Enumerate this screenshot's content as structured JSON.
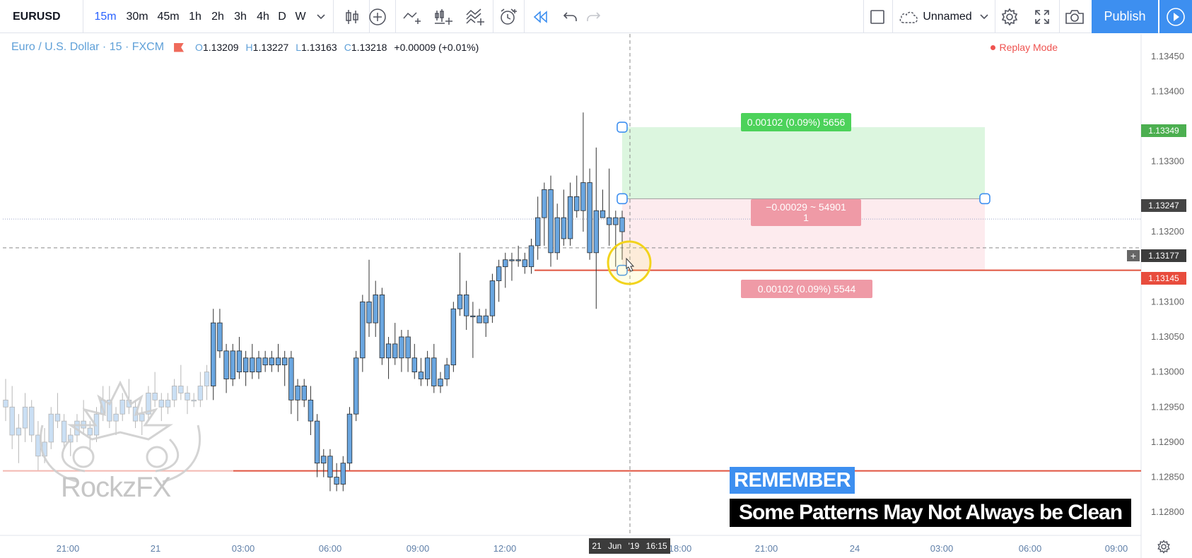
{
  "toolbar": {
    "symbol": "EURUSD",
    "intervals": [
      "15m",
      "30m",
      "45m",
      "1h",
      "2h",
      "3h",
      "4h",
      "D",
      "W"
    ],
    "active_interval": "15m",
    "layout_name": "Unnamed",
    "publish_label": "Publish"
  },
  "legend": {
    "title": "Euro / U.S. Dollar · 15 · FXCM",
    "o_key": "O",
    "o_val": "1.13209",
    "h_key": "H",
    "h_val": "1.13227",
    "l_key": "L",
    "l_val": "1.13163",
    "c_key": "C",
    "c_val": "1.13218",
    "change": "+0.00009 (+0.01%)",
    "replay": "Replay Mode"
  },
  "position": {
    "tp_label": "0.00102 (0.09%) 5656",
    "mid_label_1": "−0.00029 ~ 54901",
    "mid_label_2": "1",
    "sl_label": "0.00102 (0.09%) 5544",
    "tp_price": "1.13349",
    "entry_price": "1.13247",
    "crosshair_price": "1.13177",
    "sl_price": "1.13145",
    "tp_value": 1.13349,
    "entry_value": 1.13247,
    "sl_value": 1.13145
  },
  "crosshair": {
    "time_label": "21 Jun '19 16:15"
  },
  "overlay": {
    "remember": "REMEMBER",
    "subtitle": "Some Patterns May Not Always be Clean",
    "watermark": "RockzFX"
  },
  "colors": {
    "up": "#6aa6e0",
    "down": "#6aa6e0",
    "wick": "#333333",
    "accent": "#3d8ff0",
    "tp_fill": "#dcf6df",
    "sl_fill": "#fdebee",
    "support_line": "#e0533f"
  },
  "chart_data": {
    "type": "candlestick",
    "ylim": [
      1.1277,
      1.1348
    ],
    "y_ticks": [
      "1.13450",
      "1.13400",
      "1.13300",
      "1.13200",
      "1.13100",
      "1.13050",
      "1.13000",
      "1.12950",
      "1.12900",
      "1.12850",
      "1.12800"
    ],
    "y_tick_values": [
      1.1345,
      1.134,
      1.133,
      1.132,
      1.131,
      1.1305,
      1.13,
      1.1295,
      1.129,
      1.1285,
      1.128
    ],
    "x_ticks": [
      "21:00",
      "21",
      "03:00",
      "06:00",
      "09:00",
      "12:00",
      "18:00",
      "21:00",
      "24",
      "03:00",
      "06:00",
      "09:00"
    ],
    "horizontal_lines": [
      1.13145,
      1.12859
    ],
    "candles": [
      [
        1.1296,
        1.1299,
        1.1293,
        1.1295
      ],
      [
        1.1295,
        1.1298,
        1.1289,
        1.1291
      ],
      [
        1.1291,
        1.1294,
        1.1287,
        1.1292
      ],
      [
        1.1292,
        1.1297,
        1.129,
        1.1295
      ],
      [
        1.1295,
        1.1296,
        1.129,
        1.1291
      ],
      [
        1.1291,
        1.1293,
        1.1286,
        1.1288
      ],
      [
        1.1288,
        1.1292,
        1.1287,
        1.129
      ],
      [
        1.129,
        1.1295,
        1.1289,
        1.1294
      ],
      [
        1.1294,
        1.1297,
        1.1292,
        1.1293
      ],
      [
        1.1293,
        1.1294,
        1.1289,
        1.129
      ],
      [
        1.129,
        1.1292,
        1.1288,
        1.1291
      ],
      [
        1.1291,
        1.1294,
        1.129,
        1.1293
      ],
      [
        1.1293,
        1.1296,
        1.1291,
        1.1292
      ],
      [
        1.1292,
        1.1293,
        1.1289,
        1.1291
      ],
      [
        1.1291,
        1.1295,
        1.129,
        1.1294
      ],
      [
        1.1294,
        1.1298,
        1.1293,
        1.1296
      ],
      [
        1.1296,
        1.1298,
        1.1292,
        1.1293
      ],
      [
        1.1293,
        1.1295,
        1.1291,
        1.1294
      ],
      [
        1.1294,
        1.1297,
        1.1293,
        1.1296
      ],
      [
        1.1296,
        1.1299,
        1.1294,
        1.1295
      ],
      [
        1.1295,
        1.1296,
        1.1292,
        1.1293
      ],
      [
        1.1293,
        1.1295,
        1.1291,
        1.1294
      ],
      [
        1.1294,
        1.1298,
        1.1293,
        1.1297
      ],
      [
        1.1297,
        1.13,
        1.1295,
        1.1296
      ],
      [
        1.1296,
        1.1297,
        1.1293,
        1.1295
      ],
      [
        1.1295,
        1.1297,
        1.1294,
        1.1296
      ],
      [
        1.1296,
        1.1299,
        1.1295,
        1.1298
      ],
      [
        1.1298,
        1.1301,
        1.1296,
        1.1297
      ],
      [
        1.1297,
        1.1298,
        1.1294,
        1.1296
      ],
      [
        1.1296,
        1.1297,
        1.1295,
        1.1296
      ],
      [
        1.1296,
        1.13,
        1.1295,
        1.1298
      ],
      [
        1.1298,
        1.1301,
        1.1296,
        1.13
      ],
      [
        1.1298,
        1.1309,
        1.1296,
        1.1307
      ],
      [
        1.1307,
        1.1309,
        1.1302,
        1.1303
      ],
      [
        1.1303,
        1.1304,
        1.1297,
        1.1299
      ],
      [
        1.1299,
        1.1304,
        1.1298,
        1.1303
      ],
      [
        1.1303,
        1.1305,
        1.1299,
        1.13
      ],
      [
        1.13,
        1.1303,
        1.1298,
        1.1302
      ],
      [
        1.1302,
        1.1304,
        1.1299,
        1.13
      ],
      [
        1.13,
        1.1303,
        1.1299,
        1.1302
      ],
      [
        1.1302,
        1.1303,
        1.13,
        1.1301
      ],
      [
        1.1301,
        1.1303,
        1.13,
        1.1302
      ],
      [
        1.1302,
        1.1304,
        1.13,
        1.1301
      ],
      [
        1.1301,
        1.1303,
        1.1298,
        1.1302
      ],
      [
        1.1302,
        1.1303,
        1.1294,
        1.1296
      ],
      [
        1.1296,
        1.1299,
        1.1293,
        1.1298
      ],
      [
        1.1298,
        1.1299,
        1.1295,
        1.1296
      ],
      [
        1.1296,
        1.1298,
        1.1291,
        1.1293
      ],
      [
        1.1293,
        1.1294,
        1.1285,
        1.1287
      ],
      [
        1.1287,
        1.1289,
        1.1285,
        1.1288
      ],
      [
        1.1288,
        1.1289,
        1.1283,
        1.1285
      ],
      [
        1.1285,
        1.1287,
        1.1283,
        1.1284
      ],
      [
        1.1284,
        1.1288,
        1.1283,
        1.1287
      ],
      [
        1.1287,
        1.1295,
        1.1286,
        1.1294
      ],
      [
        1.1294,
        1.1303,
        1.1293,
        1.1302
      ],
      [
        1.1302,
        1.1311,
        1.13,
        1.131
      ],
      [
        1.131,
        1.1316,
        1.1305,
        1.1307
      ],
      [
        1.1307,
        1.1313,
        1.1305,
        1.1311
      ],
      [
        1.1311,
        1.1312,
        1.1301,
        1.1302
      ],
      [
        1.1302,
        1.1305,
        1.1299,
        1.1304
      ],
      [
        1.1304,
        1.1307,
        1.1301,
        1.1302
      ],
      [
        1.1302,
        1.1306,
        1.13,
        1.1305
      ],
      [
        1.1305,
        1.1306,
        1.13,
        1.1302
      ],
      [
        1.1302,
        1.1304,
        1.1299,
        1.13
      ],
      [
        1.13,
        1.1302,
        1.1298,
        1.1299
      ],
      [
        1.1299,
        1.1303,
        1.1298,
        1.1302
      ],
      [
        1.1302,
        1.1304,
        1.1297,
        1.1298
      ],
      [
        1.1298,
        1.13,
        1.1297,
        1.1299
      ],
      [
        1.1299,
        1.1302,
        1.1298,
        1.1301
      ],
      [
        1.1301,
        1.131,
        1.13,
        1.1309
      ],
      [
        1.1309,
        1.1317,
        1.1308,
        1.1311
      ],
      [
        1.1311,
        1.1313,
        1.1306,
        1.1308
      ],
      [
        1.1308,
        1.131,
        1.1302,
        1.1308
      ],
      [
        1.1308,
        1.1309,
        1.1307,
        1.1307
      ],
      [
        1.1307,
        1.1309,
        1.1305,
        1.1308
      ],
      [
        1.1308,
        1.1314,
        1.1307,
        1.1313
      ],
      [
        1.1313,
        1.1316,
        1.131,
        1.1315
      ],
      [
        1.1315,
        1.1317,
        1.1312,
        1.1316
      ],
      [
        1.1316,
        1.1317,
        1.1313,
        1.1316
      ],
      [
        1.1316,
        1.1318,
        1.1315,
        1.1316
      ],
      [
        1.1316,
        1.1317,
        1.1314,
        1.1315
      ],
      [
        1.1315,
        1.1319,
        1.1314,
        1.1318
      ],
      [
        1.1318,
        1.1325,
        1.1316,
        1.1322
      ],
      [
        1.1322,
        1.1327,
        1.1318,
        1.1326
      ],
      [
        1.1326,
        1.1328,
        1.1315,
        1.1317
      ],
      [
        1.1317,
        1.1324,
        1.1316,
        1.1322
      ],
      [
        1.1322,
        1.1326,
        1.1318,
        1.1319
      ],
      [
        1.1319,
        1.1327,
        1.1318,
        1.1325
      ],
      [
        1.1325,
        1.1328,
        1.1322,
        1.1323
      ],
      [
        1.1323,
        1.1337,
        1.132,
        1.1327
      ],
      [
        1.1327,
        1.1329,
        1.1316,
        1.1317
      ],
      [
        1.1317,
        1.1332,
        1.1309,
        1.1323
      ],
      [
        1.1323,
        1.1326,
        1.1322,
        1.1322
      ],
      [
        1.1322,
        1.1329,
        1.1318,
        1.1321
      ],
      [
        1.1321,
        1.1323,
        1.1315,
        1.1322
      ],
      [
        1.132,
        1.1323,
        1.1316,
        1.1322
      ]
    ]
  }
}
